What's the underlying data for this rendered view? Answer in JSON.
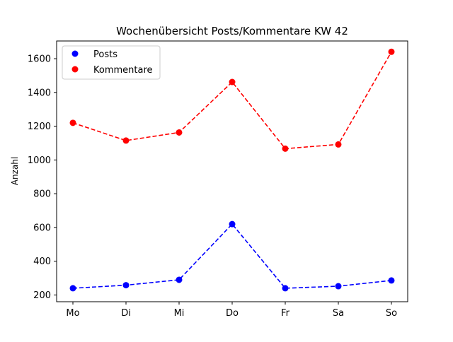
{
  "chart_data": {
    "type": "line",
    "title": "Wochenübersicht Posts/Kommentare KW 42",
    "xlabel": "",
    "ylabel": "Anzahl",
    "categories": [
      "Mo",
      "Di",
      "Mi",
      "Do",
      "Fr",
      "Sa",
      "So"
    ],
    "ylim": [
      160,
      1705
    ],
    "yticks": [
      200,
      400,
      600,
      800,
      1000,
      1200,
      1400,
      1600
    ],
    "grid": false,
    "legend_position": "upper left",
    "series": [
      {
        "name": "Posts",
        "color": "#0000ff",
        "values": [
          240,
          258,
          290,
          620,
          240,
          252,
          286
        ]
      },
      {
        "name": "Kommentare",
        "color": "#ff0000",
        "values": [
          1220,
          1115,
          1163,
          1462,
          1067,
          1092,
          1641
        ]
      }
    ]
  }
}
